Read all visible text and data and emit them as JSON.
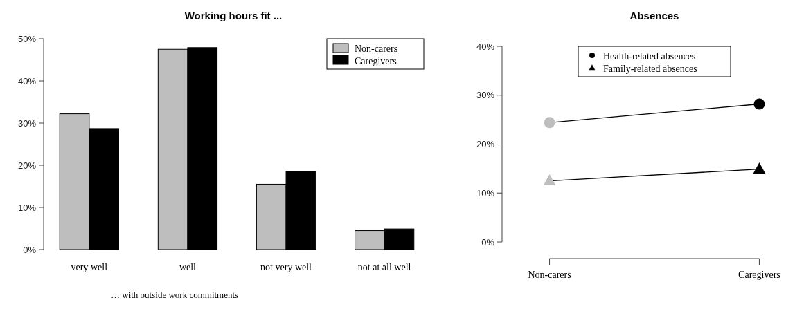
{
  "chart_data": [
    {
      "type": "bar",
      "title": "Working hours fit ...",
      "xlabel": "… with outside work commitments",
      "categories": [
        "very well",
        "well",
        "not very well",
        "not at all well"
      ],
      "series": [
        {
          "name": "Non-carers",
          "color": "#bebebe",
          "values": [
            32.2,
            47.5,
            15.5,
            4.5
          ]
        },
        {
          "name": "Caregivers",
          "color": "#000000",
          "values": [
            28.7,
            47.9,
            18.6,
            4.9
          ]
        }
      ],
      "ylim": [
        0,
        50
      ],
      "yticks": [
        {
          "value": 0,
          "label": "0%"
        },
        {
          "value": 10,
          "label": "10%"
        },
        {
          "value": 20,
          "label": "20%"
        },
        {
          "value": 30,
          "label": "30%"
        },
        {
          "value": 40,
          "label": "40%"
        },
        {
          "value": 50,
          "label": "50%"
        }
      ],
      "legend": "top right",
      "grid": false
    },
    {
      "type": "line",
      "title": "Absences",
      "categories": [
        "Non-carers",
        "Caregivers"
      ],
      "series": [
        {
          "name": "Health-related absences",
          "color": "#000000",
          "colors": [
            "#bebebe",
            "#000000"
          ],
          "marker": "circle",
          "values": [
            24.4,
            28.2
          ]
        },
        {
          "name": "Family-related absences",
          "color": "#000000",
          "colors": [
            "#bebebe",
            "#000000"
          ],
          "marker": "triangle",
          "values": [
            12.5,
            14.9
          ]
        }
      ],
      "ylim": [
        0,
        40
      ],
      "yticks": [
        {
          "value": 0,
          "label": "0%"
        },
        {
          "value": 10,
          "label": "10%"
        },
        {
          "value": 20,
          "label": "20%"
        },
        {
          "value": 30,
          "label": "30%"
        },
        {
          "value": 40,
          "label": "40%"
        }
      ],
      "legend": "top",
      "grid": false
    }
  ]
}
